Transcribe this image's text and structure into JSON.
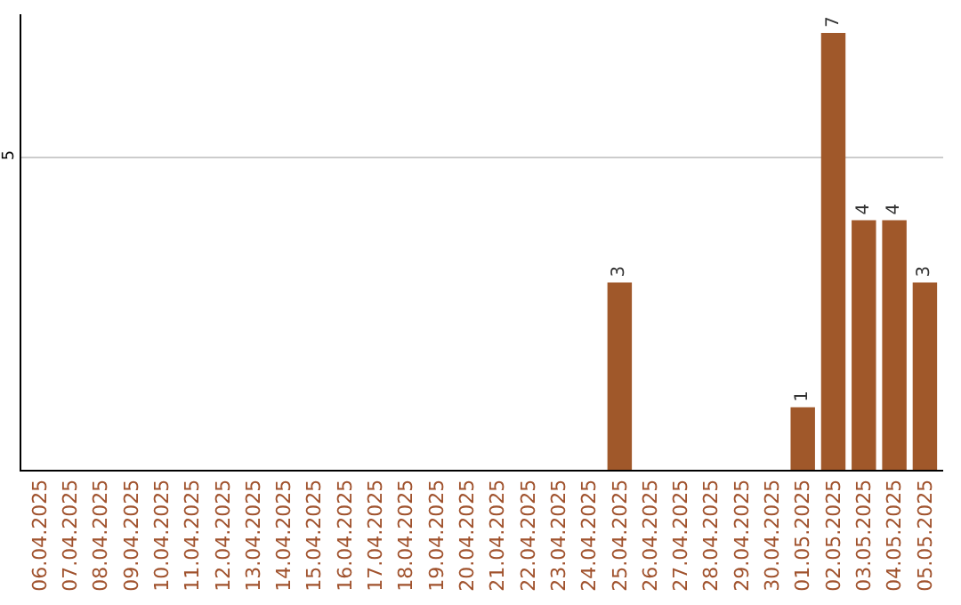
{
  "chart_data": {
    "type": "bar",
    "categories": [
      "06.04.2025",
      "07.04.2025",
      "08.04.2025",
      "09.04.2025",
      "10.04.2025",
      "11.04.2025",
      "12.04.2025",
      "13.04.2025",
      "14.04.2025",
      "15.04.2025",
      "16.04.2025",
      "17.04.2025",
      "18.04.2025",
      "19.04.2025",
      "20.04.2025",
      "21.04.2025",
      "22.04.2025",
      "23.04.2025",
      "24.04.2025",
      "25.04.2025",
      "26.04.2025",
      "27.04.2025",
      "28.04.2025",
      "29.04.2025",
      "30.04.2025",
      "01.05.2025",
      "02.05.2025",
      "03.05.2025",
      "04.05.2025",
      "05.05.2025"
    ],
    "values": [
      null,
      null,
      null,
      null,
      null,
      null,
      null,
      null,
      null,
      null,
      null,
      null,
      null,
      null,
      null,
      null,
      null,
      null,
      null,
      3,
      null,
      null,
      null,
      null,
      null,
      1,
      7,
      4,
      4,
      3
    ],
    "color": "#a0582a",
    "ylim": [
      0,
      7.3
    ],
    "yticks": [
      5
    ],
    "grid": "y",
    "data_labels": true
  }
}
